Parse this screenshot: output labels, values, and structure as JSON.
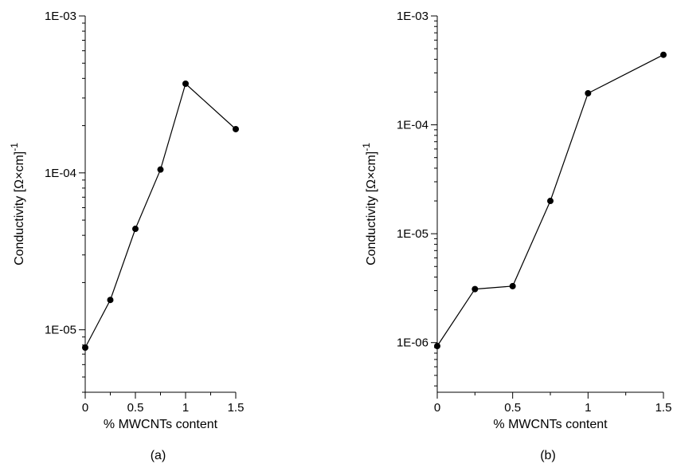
{
  "chart_data": [
    {
      "type": "line",
      "panel_label": "(a)",
      "xlabel": "% MWCNTs content",
      "ylabel": "Conductivity [Ω×cm]",
      "ylabel_superscript": "-1",
      "yscale": "log",
      "xlim": [
        0,
        1.5
      ],
      "ylim": [
        4e-06,
        0.001
      ],
      "xticks": [
        {
          "value": 0,
          "label": "0"
        },
        {
          "value": 0.5,
          "label": "0.5"
        },
        {
          "value": 1,
          "label": "1"
        },
        {
          "value": 1.5,
          "label": "1.5"
        }
      ],
      "xminor": [
        0.25,
        0.75,
        1.25
      ],
      "yticks": [
        {
          "value": 1e-05,
          "label": "1E-05"
        },
        {
          "value": 0.0001,
          "label": "1E-04"
        },
        {
          "value": 0.001,
          "label": "1E-03"
        }
      ],
      "series": [
        {
          "color": "#000000",
          "marker": "circle",
          "points": [
            {
              "x": 0,
              "y": 7.7e-06
            },
            {
              "x": 0.25,
              "y": 1.55e-05
            },
            {
              "x": 0.5,
              "y": 4.4e-05
            },
            {
              "x": 0.75,
              "y": 0.000105
            },
            {
              "x": 1,
              "y": 0.00037
            },
            {
              "x": 1.5,
              "y": 0.00019
            }
          ]
        }
      ]
    },
    {
      "type": "line",
      "panel_label": "(b)",
      "xlabel": "% MWCNTs content",
      "ylabel": "Conductivity [Ω×cm]",
      "ylabel_superscript": "-1",
      "yscale": "log",
      "xlim": [
        0,
        1.5
      ],
      "ylim": [
        3.5e-07,
        0.001
      ],
      "xticks": [
        {
          "value": 0,
          "label": "0"
        },
        {
          "value": 0.5,
          "label": "0.5"
        },
        {
          "value": 1,
          "label": "1"
        },
        {
          "value": 1.5,
          "label": "1.5"
        }
      ],
      "xminor": [
        0.25,
        0.75,
        1.25
      ],
      "yticks": [
        {
          "value": 1e-06,
          "label": "1E-06"
        },
        {
          "value": 1e-05,
          "label": "1E-05"
        },
        {
          "value": 0.0001,
          "label": "1E-04"
        },
        {
          "value": 0.001,
          "label": "1E-03"
        }
      ],
      "series": [
        {
          "color": "#000000",
          "marker": "circle",
          "points": [
            {
              "x": 0,
              "y": 9.3e-07
            },
            {
              "x": 0.25,
              "y": 3.1e-06
            },
            {
              "x": 0.5,
              "y": 3.3e-06
            },
            {
              "x": 0.75,
              "y": 2e-05
            },
            {
              "x": 1,
              "y": 0.000195
            },
            {
              "x": 1.5,
              "y": 0.00044
            }
          ]
        }
      ]
    }
  ]
}
